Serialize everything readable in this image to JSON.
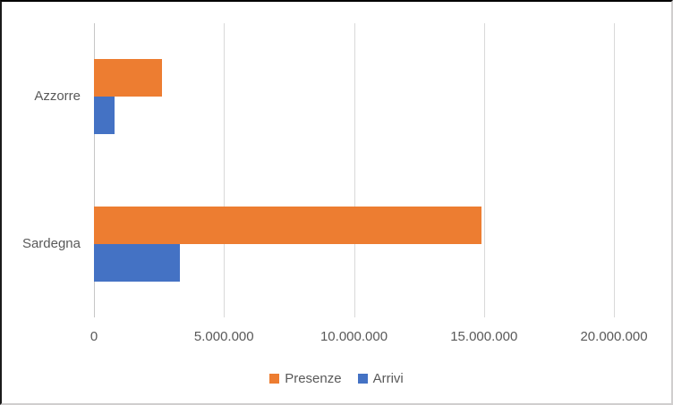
{
  "chart_data": {
    "type": "bar",
    "orientation": "horizontal",
    "title": "",
    "categories": [
      "Azzorre",
      "Sardegna"
    ],
    "series": [
      {
        "name": "Presenze",
        "color": "#ED7D31",
        "values": [
          2600000,
          14900000
        ]
      },
      {
        "name": "Arrivi",
        "color": "#4472C4",
        "values": [
          800000,
          3300000
        ]
      }
    ],
    "xlim": [
      0,
      20000000
    ],
    "x_ticks": [
      0,
      5000000,
      10000000,
      15000000,
      20000000
    ],
    "x_tick_labels": [
      "0",
      "5.000.000",
      "10.000.000",
      "15.000.000",
      "20.000.000"
    ],
    "grid": true,
    "legend_position": "bottom",
    "colors": {
      "text": "#595959",
      "gridline": "#D9D9D9",
      "category_axis_line": "#C6C6C6",
      "background": "#FFFFFF"
    }
  }
}
